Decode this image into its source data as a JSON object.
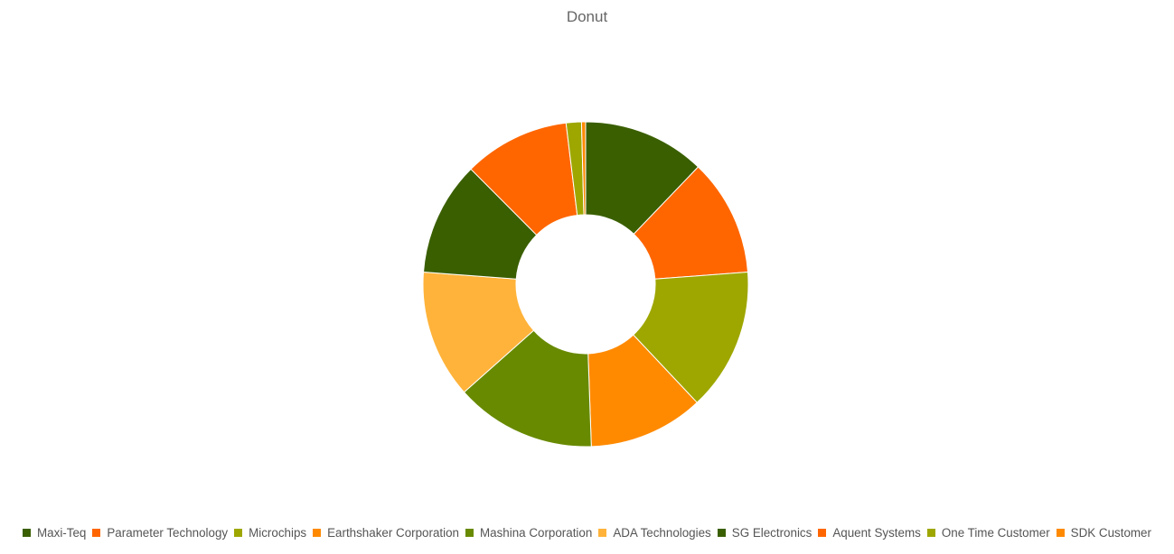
{
  "chart_data": {
    "type": "donut",
    "title": "Donut",
    "legend_position": "bottom",
    "slices": [
      {
        "name": "Maxi-Teq",
        "value": 12.0,
        "color": "#3a5f00"
      },
      {
        "name": "Parameter Technology",
        "value": 11.5,
        "color": "#ff6600"
      },
      {
        "name": "Microchips",
        "value": 14.0,
        "color": "#9ea700"
      },
      {
        "name": "Earthshaker Corporation",
        "value": 11.3,
        "color": "#ff8a00"
      },
      {
        "name": "Mashina Corporation",
        "value": 13.8,
        "color": "#688a00"
      },
      {
        "name": "ADA Technologies",
        "value": 12.6,
        "color": "#ffb33a"
      },
      {
        "name": "SG Electronics",
        "value": 11.2,
        "color": "#3a5f00"
      },
      {
        "name": "Aquent Systems",
        "value": 10.4,
        "color": "#ff6600"
      },
      {
        "name": "One Time Customer",
        "value": 1.5,
        "color": "#9ea700"
      },
      {
        "name": "SDK Customer",
        "value": 0.4,
        "color": "#ff8a00"
      }
    ]
  }
}
